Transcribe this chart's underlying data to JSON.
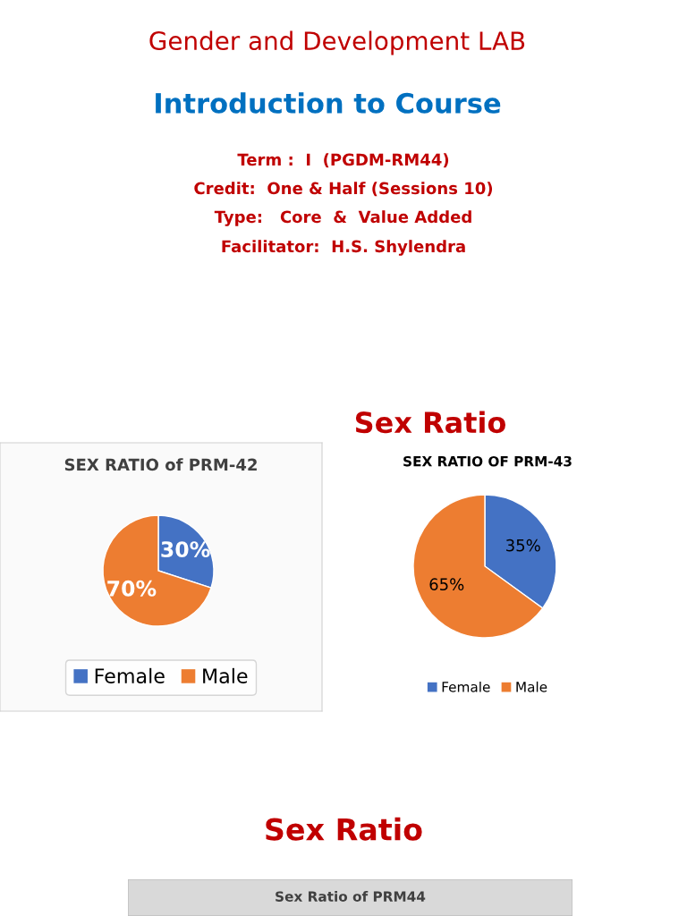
{
  "chart_data": [
    {
      "type": "other",
      "title": "Gender and Development LAB",
      "subtitle": "Introduction to Course",
      "annotations": [
        "Term :  I  (PGDM-RM44)",
        "Credit:  One & Half (Sessions 10)",
        "Type:   Core  &  Value Added",
        "Facilitator:  H.S. Shylendra",
        "Sex Ratio"
      ]
    },
    {
      "type": "pie",
      "title": "SEX RATIO of PRM-42",
      "categories": [
        "Female",
        "Male"
      ],
      "values": [
        30,
        70
      ],
      "colors": [
        "#4472c4",
        "#ed7d31"
      ],
      "value_labels": [
        "30%",
        "70%"
      ],
      "legend": "bottom"
    },
    {
      "type": "pie",
      "title": "SEX RATIO OF PRM-43",
      "categories": [
        "Female",
        "Male"
      ],
      "values": [
        35,
        65
      ],
      "colors": [
        "#4472c4",
        "#ed7d31"
      ],
      "value_labels": [
        "35%",
        "65%"
      ],
      "legend": "bottom"
    },
    {
      "type": "other",
      "title": "Sex Ratio",
      "subtitle": "Sex Ratio of PRM44"
    }
  ]
}
